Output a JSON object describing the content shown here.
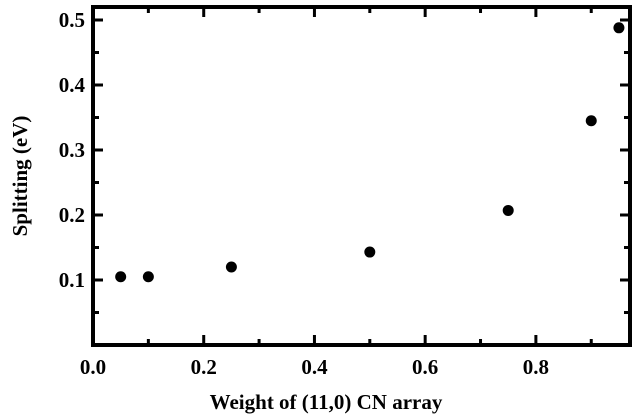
{
  "chart_data": {
    "type": "scatter",
    "title": "",
    "xlabel": "Weight of (11,0) CN array",
    "ylabel": "Splitting (eV)",
    "xlim": [
      0.0,
      0.97
    ],
    "ylim": [
      0.0,
      0.52
    ],
    "x_ticks": [
      {
        "value": 0.0,
        "label": "0.0"
      },
      {
        "value": 0.2,
        "label": "0.2"
      },
      {
        "value": 0.4,
        "label": "0.4"
      },
      {
        "value": 0.6,
        "label": "0.6"
      },
      {
        "value": 0.8,
        "label": "0.8"
      }
    ],
    "y_ticks": [
      {
        "value": 0.1,
        "label": "0.1"
      },
      {
        "value": 0.2,
        "label": "0.2"
      },
      {
        "value": 0.3,
        "label": "0.3"
      },
      {
        "value": 0.4,
        "label": "0.4"
      },
      {
        "value": 0.5,
        "label": "0.5"
      }
    ],
    "x_minor_step": 0.1,
    "y_minor_step": 0.05,
    "grid": false,
    "legend": "none",
    "series": [
      {
        "color": "#000000",
        "points": [
          {
            "x": 0.05,
            "y": 0.105
          },
          {
            "x": 0.1,
            "y": 0.105
          },
          {
            "x": 0.25,
            "y": 0.12
          },
          {
            "x": 0.5,
            "y": 0.143
          },
          {
            "x": 0.75,
            "y": 0.207
          },
          {
            "x": 0.9,
            "y": 0.345
          },
          {
            "x": 0.95,
            "y": 0.488
          }
        ]
      }
    ]
  }
}
